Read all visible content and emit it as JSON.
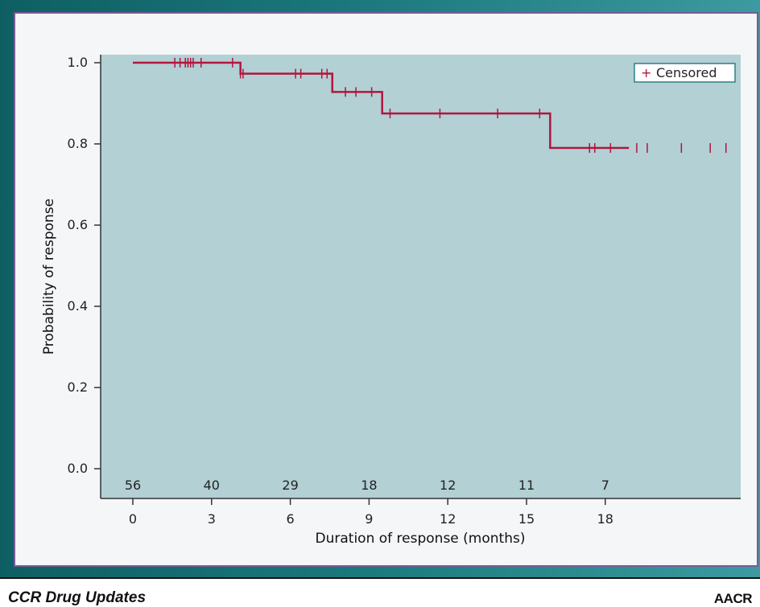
{
  "footer": {
    "left_text": "CCR Drug Updates",
    "right_text": "AACR"
  },
  "colors": {
    "frame": "#1a777b",
    "border": "#7b5a97",
    "plot_bg": "#b3d0d4",
    "curve": "#b0163f",
    "axis": "#333333"
  },
  "chart_data": {
    "type": "line",
    "subtype": "kaplan-meier step curve",
    "title": "",
    "xlabel": "Duration of response (months)",
    "ylabel": "Probability of response",
    "xlim": [
      -1,
      19.5
    ],
    "ylim": [
      0.0,
      1.0
    ],
    "x_ticks": [
      0,
      3,
      6,
      9,
      12,
      15,
      18
    ],
    "x_tick_labels": [
      "0",
      "3",
      "6",
      "9",
      "12",
      "15",
      "18"
    ],
    "y_ticks": [
      0.0,
      0.2,
      0.4,
      0.6,
      0.8,
      1.0
    ],
    "y_tick_labels": [
      "0.0",
      "0.2",
      "0.4",
      "0.6",
      "0.8",
      "1.0"
    ],
    "grid": false,
    "legend": {
      "position": "top-right",
      "entries": [
        {
          "marker": "+",
          "label": "Censored"
        }
      ]
    },
    "series": [
      {
        "steps": [
          {
            "x": 0.0,
            "y": 1.0
          },
          {
            "x": 4.1,
            "y": 0.973
          },
          {
            "x": 7.6,
            "y": 0.928
          },
          {
            "x": 9.5,
            "y": 0.875
          },
          {
            "x": 15.9,
            "y": 0.79
          },
          {
            "x": 18.9,
            "y": 0.79
          }
        ],
        "censored": [
          {
            "x": 1.6,
            "y": 1.0
          },
          {
            "x": 1.8,
            "y": 1.0
          },
          {
            "x": 2.0,
            "y": 1.0
          },
          {
            "x": 2.1,
            "y": 1.0
          },
          {
            "x": 2.2,
            "y": 1.0
          },
          {
            "x": 2.3,
            "y": 1.0
          },
          {
            "x": 2.6,
            "y": 1.0
          },
          {
            "x": 3.8,
            "y": 1.0
          },
          {
            "x": 4.1,
            "y": 0.973
          },
          {
            "x": 4.2,
            "y": 0.973
          },
          {
            "x": 6.2,
            "y": 0.973
          },
          {
            "x": 6.4,
            "y": 0.973
          },
          {
            "x": 7.2,
            "y": 0.973
          },
          {
            "x": 7.4,
            "y": 0.973
          },
          {
            "x": 8.1,
            "y": 0.928
          },
          {
            "x": 8.5,
            "y": 0.928
          },
          {
            "x": 9.1,
            "y": 0.928
          },
          {
            "x": 9.8,
            "y": 0.875
          },
          {
            "x": 11.7,
            "y": 0.875
          },
          {
            "x": 13.9,
            "y": 0.875
          },
          {
            "x": 15.5,
            "y": 0.875
          },
          {
            "x": 17.4,
            "y": 0.79
          },
          {
            "x": 17.6,
            "y": 0.79
          },
          {
            "x": 18.2,
            "y": 0.79
          },
          {
            "x": 19.2,
            "y": 0.79
          },
          {
            "x": 19.6,
            "y": 0.79
          },
          {
            "x": 20.9,
            "y": 0.79
          },
          {
            "x": 22.0,
            "y": 0.79
          },
          {
            "x": 22.6,
            "y": 0.79
          }
        ]
      }
    ],
    "number_at_risk": {
      "x": [
        0,
        3,
        6,
        9,
        12,
        15,
        18
      ],
      "values": [
        "56",
        "40",
        "29",
        "18",
        "12",
        "11",
        "7"
      ]
    }
  }
}
